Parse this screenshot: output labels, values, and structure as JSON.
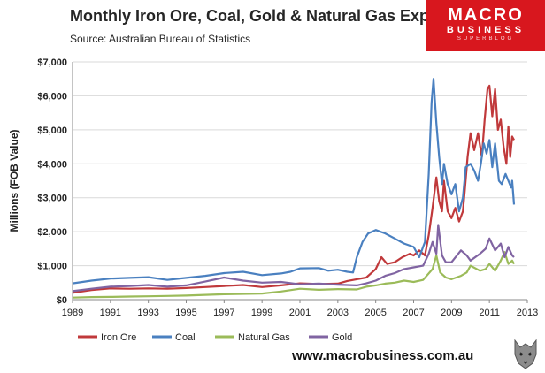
{
  "header": {
    "title": "Monthly Iron Ore, Coal, Gold & Natural Gas Exports",
    "source": "Source:  Australian Bureau of Statistics"
  },
  "logo": {
    "line1": "MACRO",
    "line2": "BUSINESS",
    "line3": "SUPERBLOG",
    "color": "#d8171e"
  },
  "footer": {
    "website": "www.macrobusiness.com.au"
  },
  "chart_data": {
    "type": "line",
    "title": "Monthly Iron Ore, Coal, Gold & Natural Gas Exports",
    "subtitle": "Source:  Australian Bureau of Statistics",
    "ylabel": "Millions (FOB Value)",
    "xlabel": "",
    "xlim": [
      1989,
      2013
    ],
    "ylim": [
      0,
      7000
    ],
    "x_ticks": [
      1989,
      1991,
      1993,
      1995,
      1997,
      1999,
      2001,
      2003,
      2005,
      2007,
      2009,
      2011,
      2013
    ],
    "y_ticks": [
      0,
      1000,
      2000,
      3000,
      4000,
      5000,
      6000,
      7000
    ],
    "y_tick_labels": [
      "$0",
      "$1,000",
      "$2,000",
      "$3,000",
      "$4,000",
      "$5,000",
      "$6,000",
      "$7,000"
    ],
    "grid": "horizontal",
    "legend_position": "bottom",
    "series": [
      {
        "name": "Iron Ore",
        "color": "#c0393b",
        "points": [
          [
            1989.0,
            200
          ],
          [
            1990.0,
            280
          ],
          [
            1991.0,
            330
          ],
          [
            1992.0,
            320
          ],
          [
            1993.0,
            330
          ],
          [
            1994.0,
            320
          ],
          [
            1995.0,
            340
          ],
          [
            1996.0,
            370
          ],
          [
            1997.0,
            400
          ],
          [
            1998.0,
            430
          ],
          [
            1999.0,
            370
          ],
          [
            2000.0,
            420
          ],
          [
            2001.0,
            480
          ],
          [
            2002.0,
            460
          ],
          [
            2003.0,
            470
          ],
          [
            2003.5,
            550
          ],
          [
            2004.0,
            600
          ],
          [
            2004.5,
            650
          ],
          [
            2005.0,
            900
          ],
          [
            2005.3,
            1250
          ],
          [
            2005.6,
            1050
          ],
          [
            2006.0,
            1100
          ],
          [
            2006.4,
            1250
          ],
          [
            2006.8,
            1350
          ],
          [
            2007.0,
            1300
          ],
          [
            2007.3,
            1450
          ],
          [
            2007.6,
            1300
          ],
          [
            2007.8,
            1900
          ],
          [
            2008.0,
            2700
          ],
          [
            2008.2,
            3600
          ],
          [
            2008.35,
            2900
          ],
          [
            2008.5,
            2600
          ],
          [
            2008.6,
            3500
          ],
          [
            2008.8,
            2600
          ],
          [
            2009.0,
            2400
          ],
          [
            2009.2,
            2700
          ],
          [
            2009.4,
            2300
          ],
          [
            2009.6,
            2600
          ],
          [
            2009.7,
            3200
          ],
          [
            2009.85,
            4200
          ],
          [
            2010.0,
            4900
          ],
          [
            2010.2,
            4400
          ],
          [
            2010.4,
            4900
          ],
          [
            2010.6,
            4200
          ],
          [
            2010.75,
            5300
          ],
          [
            2010.9,
            6200
          ],
          [
            2011.0,
            6300
          ],
          [
            2011.15,
            5400
          ],
          [
            2011.3,
            6200
          ],
          [
            2011.45,
            5000
          ],
          [
            2011.6,
            5300
          ],
          [
            2011.75,
            4500
          ],
          [
            2011.9,
            4000
          ],
          [
            2012.0,
            5100
          ],
          [
            2012.1,
            4200
          ],
          [
            2012.2,
            4800
          ],
          [
            2012.3,
            4700
          ]
        ]
      },
      {
        "name": "Coal",
        "color": "#4a80c0",
        "points": [
          [
            1989.0,
            480
          ],
          [
            1990.0,
            560
          ],
          [
            1991.0,
            620
          ],
          [
            1992.0,
            640
          ],
          [
            1993.0,
            660
          ],
          [
            1994.0,
            580
          ],
          [
            1995.0,
            640
          ],
          [
            1996.0,
            700
          ],
          [
            1997.0,
            780
          ],
          [
            1998.0,
            820
          ],
          [
            1999.0,
            720
          ],
          [
            2000.0,
            770
          ],
          [
            2000.5,
            820
          ],
          [
            2001.0,
            920
          ],
          [
            2002.0,
            930
          ],
          [
            2002.5,
            850
          ],
          [
            2003.0,
            880
          ],
          [
            2003.5,
            820
          ],
          [
            2003.8,
            800
          ],
          [
            2004.0,
            1250
          ],
          [
            2004.3,
            1700
          ],
          [
            2004.6,
            1950
          ],
          [
            2005.0,
            2050
          ],
          [
            2005.5,
            1950
          ],
          [
            2006.0,
            1800
          ],
          [
            2006.5,
            1650
          ],
          [
            2007.0,
            1550
          ],
          [
            2007.3,
            1250
          ],
          [
            2007.6,
            1700
          ],
          [
            2007.8,
            3700
          ],
          [
            2007.95,
            5800
          ],
          [
            2008.05,
            6500
          ],
          [
            2008.2,
            5200
          ],
          [
            2008.35,
            4200
          ],
          [
            2008.5,
            3400
          ],
          [
            2008.6,
            4000
          ],
          [
            2008.8,
            3400
          ],
          [
            2009.0,
            3100
          ],
          [
            2009.2,
            3400
          ],
          [
            2009.4,
            2600
          ],
          [
            2009.6,
            3000
          ],
          [
            2009.75,
            3900
          ],
          [
            2010.0,
            4000
          ],
          [
            2010.2,
            3800
          ],
          [
            2010.4,
            3500
          ],
          [
            2010.55,
            4000
          ],
          [
            2010.7,
            4600
          ],
          [
            2010.85,
            4300
          ],
          [
            2011.0,
            4700
          ],
          [
            2011.15,
            3900
          ],
          [
            2011.3,
            4600
          ],
          [
            2011.5,
            3500
          ],
          [
            2011.65,
            3400
          ],
          [
            2011.85,
            3700
          ],
          [
            2012.0,
            3500
          ],
          [
            2012.15,
            3300
          ],
          [
            2012.2,
            3500
          ],
          [
            2012.3,
            2800
          ]
        ]
      },
      {
        "name": "Natural Gas",
        "color": "#9bbb59",
        "points": [
          [
            1989.0,
            60
          ],
          [
            1990.0,
            75
          ],
          [
            1991.0,
            80
          ],
          [
            1992.0,
            90
          ],
          [
            1993.0,
            100
          ],
          [
            1994.0,
            110
          ],
          [
            1995.0,
            120
          ],
          [
            1996.0,
            140
          ],
          [
            1997.0,
            160
          ],
          [
            1998.0,
            170
          ],
          [
            1999.0,
            180
          ],
          [
            2000.0,
            240
          ],
          [
            2001.0,
            320
          ],
          [
            2002.0,
            290
          ],
          [
            2003.0,
            310
          ],
          [
            2004.0,
            300
          ],
          [
            2004.5,
            380
          ],
          [
            2005.0,
            420
          ],
          [
            2005.5,
            470
          ],
          [
            2006.0,
            500
          ],
          [
            2006.5,
            560
          ],
          [
            2007.0,
            520
          ],
          [
            2007.5,
            580
          ],
          [
            2008.0,
            900
          ],
          [
            2008.2,
            1300
          ],
          [
            2008.4,
            800
          ],
          [
            2008.7,
            650
          ],
          [
            2009.0,
            600
          ],
          [
            2009.5,
            700
          ],
          [
            2009.8,
            800
          ],
          [
            2010.0,
            1000
          ],
          [
            2010.5,
            850
          ],
          [
            2010.8,
            900
          ],
          [
            2011.0,
            1050
          ],
          [
            2011.3,
            850
          ],
          [
            2011.6,
            1150
          ],
          [
            2011.8,
            1400
          ],
          [
            2012.0,
            1050
          ],
          [
            2012.2,
            1150
          ],
          [
            2012.3,
            1050
          ]
        ]
      },
      {
        "name": "Gold",
        "color": "#8064a2",
        "points": [
          [
            1989.0,
            250
          ],
          [
            1990.0,
            320
          ],
          [
            1991.0,
            380
          ],
          [
            1992.0,
            400
          ],
          [
            1993.0,
            430
          ],
          [
            1994.0,
            380
          ],
          [
            1995.0,
            420
          ],
          [
            1996.0,
            530
          ],
          [
            1997.0,
            650
          ],
          [
            1998.0,
            560
          ],
          [
            1999.0,
            500
          ],
          [
            2000.0,
            520
          ],
          [
            2001.0,
            450
          ],
          [
            2002.0,
            470
          ],
          [
            2003.0,
            440
          ],
          [
            2004.0,
            420
          ],
          [
            2004.5,
            480
          ],
          [
            2005.0,
            560
          ],
          [
            2005.5,
            700
          ],
          [
            2006.0,
            780
          ],
          [
            2006.5,
            900
          ],
          [
            2007.0,
            950
          ],
          [
            2007.5,
            1000
          ],
          [
            2007.8,
            1350
          ],
          [
            2008.0,
            1700
          ],
          [
            2008.2,
            1350
          ],
          [
            2008.3,
            2200
          ],
          [
            2008.5,
            1300
          ],
          [
            2008.7,
            1100
          ],
          [
            2009.0,
            1100
          ],
          [
            2009.5,
            1450
          ],
          [
            2009.8,
            1300
          ],
          [
            2010.0,
            1150
          ],
          [
            2010.5,
            1350
          ],
          [
            2010.8,
            1500
          ],
          [
            2011.0,
            1800
          ],
          [
            2011.3,
            1450
          ],
          [
            2011.6,
            1650
          ],
          [
            2011.8,
            1250
          ],
          [
            2012.0,
            1550
          ],
          [
            2012.2,
            1300
          ],
          [
            2012.3,
            1250
          ]
        ]
      }
    ]
  }
}
